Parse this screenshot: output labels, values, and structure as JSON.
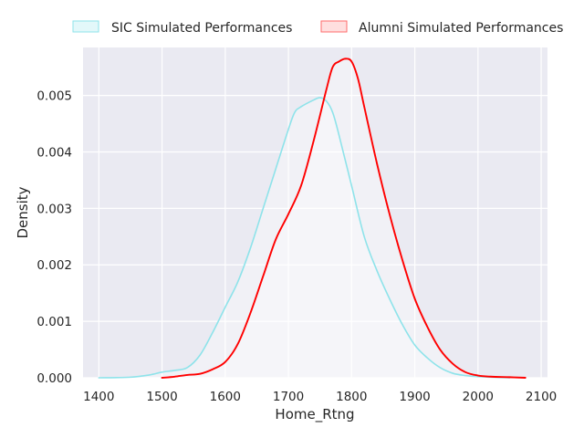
{
  "chart_data": {
    "type": "line",
    "subtype": "kde-density",
    "title": "",
    "xlabel": "Home_Rtng",
    "ylabel": "Density",
    "xlim": [
      1375,
      2110
    ],
    "ylim": [
      0,
      0.00585
    ],
    "x_ticks": [
      1400,
      1500,
      1600,
      1700,
      1800,
      1900,
      2000,
      2100
    ],
    "y_ticks": [
      0.0,
      0.001,
      0.002,
      0.003,
      0.004,
      0.005
    ],
    "y_tick_labels": [
      "0.000",
      "0.001",
      "0.002",
      "0.003",
      "0.004",
      "0.005"
    ],
    "grid": true,
    "background": "#eaeaf2",
    "legend_position": "top, outside, two columns",
    "series": [
      {
        "name": "SIC Simulated Performances",
        "color": "#8ee3ea",
        "fill": true,
        "x": [
          1400,
          1450,
          1480,
          1500,
          1520,
          1540,
          1560,
          1580,
          1600,
          1620,
          1640,
          1660,
          1680,
          1700,
          1710,
          1720,
          1740,
          1750,
          1760,
          1770,
          1780,
          1800,
          1820,
          1840,
          1860,
          1880,
          1900,
          1920,
          1940,
          1960,
          1980,
          2000,
          2020,
          2050
        ],
        "y": [
          0.0,
          1e-05,
          5e-05,
          0.0001,
          0.00013,
          0.00018,
          0.0004,
          0.0008,
          0.00125,
          0.0017,
          0.0023,
          0.003,
          0.0037,
          0.0044,
          0.0047,
          0.0048,
          0.00492,
          0.00496,
          0.0049,
          0.0047,
          0.0043,
          0.0034,
          0.0025,
          0.0019,
          0.0014,
          0.00095,
          0.00058,
          0.00035,
          0.00018,
          8e-05,
          4e-05,
          2e-05,
          1e-05,
          0.0
        ]
      },
      {
        "name": "Alumni Simulated Performances",
        "color": "#ff0000",
        "fill": true,
        "x": [
          1500,
          1520,
          1540,
          1560,
          1580,
          1600,
          1620,
          1640,
          1660,
          1680,
          1700,
          1720,
          1740,
          1760,
          1770,
          1780,
          1790,
          1800,
          1810,
          1820,
          1840,
          1860,
          1880,
          1900,
          1920,
          1940,
          1960,
          1980,
          2000,
          2020,
          2050,
          2075
        ],
        "y": [
          0.0,
          2e-05,
          5e-05,
          7e-05,
          0.00015,
          0.00028,
          0.0006,
          0.00115,
          0.0018,
          0.00245,
          0.0029,
          0.0034,
          0.0042,
          0.0051,
          0.0055,
          0.0056,
          0.00565,
          0.0056,
          0.0053,
          0.0048,
          0.0038,
          0.0029,
          0.0021,
          0.0014,
          0.0009,
          0.0005,
          0.00025,
          0.0001,
          4e-05,
          2e-05,
          1e-05,
          0.0
        ]
      }
    ]
  }
}
